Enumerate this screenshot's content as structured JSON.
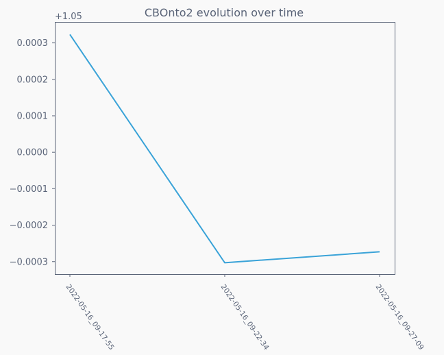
{
  "chart_data": {
    "type": "line",
    "title": "CBOnto2 evolution over time",
    "xlabel": "",
    "ylabel": "",
    "offset_label": "+1.05",
    "categories": [
      "2022-05-16_09-17-55",
      "2022-05-16_09-22-34",
      "2022-05-16_09-27-09"
    ],
    "series": [
      {
        "values": [
          1.050323,
          1.049697,
          1.049727
        ]
      }
    ],
    "y_ticks": [
      -0.0003,
      -0.0002,
      -0.0001,
      0.0,
      0.0001,
      0.0002,
      0.0003
    ],
    "y_tick_labels": [
      "−0.0003",
      "−0.0002",
      "−0.0001",
      "0.0000",
      "0.0001",
      "0.0002",
      "0.0003"
    ],
    "ylim": [
      1.0496657,
      1.0503575
    ],
    "grid": false,
    "colors": {
      "line": "#3aa3d8",
      "axes": "#5a6478",
      "text": "#5a6478",
      "background": "#f9f9f9"
    }
  }
}
